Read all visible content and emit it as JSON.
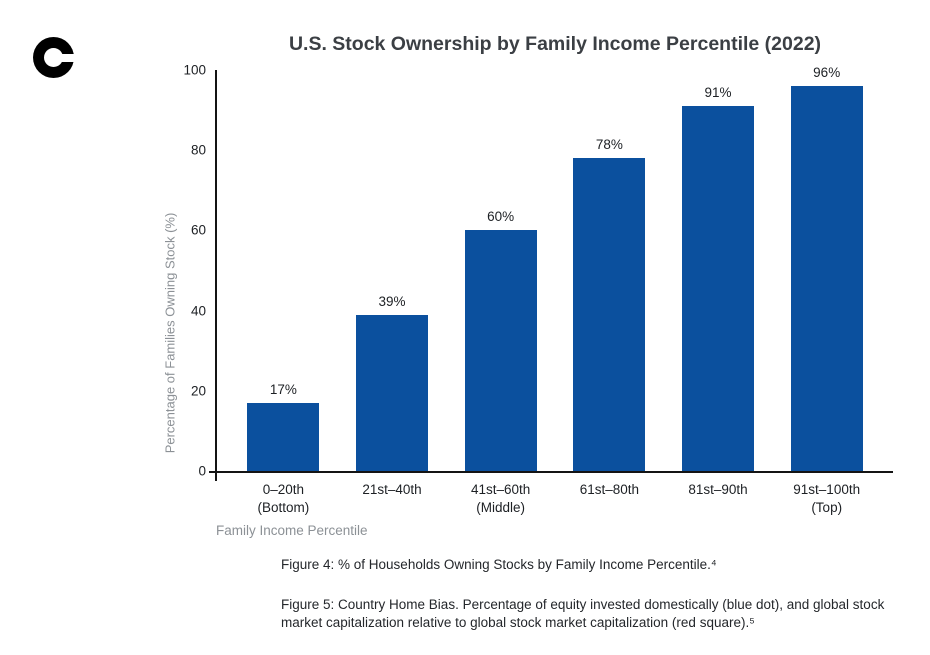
{
  "logo": {
    "icon": "coinbase-c-logo",
    "color": "#000000"
  },
  "chart_data": {
    "type": "bar",
    "title": "U.S. Stock Ownership by Family Income Percentile (2022)",
    "categories": [
      "0–20th\n(Bottom)",
      "21st–40th",
      "41st–60th\n(Middle)",
      "61st–80th",
      "81st–90th",
      "91st–100th\n(Top)"
    ],
    "values": [
      17,
      39,
      60,
      78,
      91,
      96
    ],
    "value_labels": [
      "17%",
      "39%",
      "60%",
      "78%",
      "91%",
      "96%"
    ],
    "xlabel": "Family Income Percentile",
    "ylabel": "Percentage of Families Owning Stock (%)",
    "ylim": [
      0,
      100
    ],
    "yticks": [
      0,
      20,
      40,
      60,
      80,
      100
    ],
    "bar_color": "#0b509e",
    "grid": false,
    "legend": null
  },
  "captions": {
    "figure4": "Figure 4: % of Households Owning Stocks by Family Income Percentile.⁴",
    "figure5": "Figure 5: Country Home Bias. Percentage of equity invested domestically (blue dot), and global stock market capitalization relative to global stock market capitalization (red square).⁵"
  }
}
